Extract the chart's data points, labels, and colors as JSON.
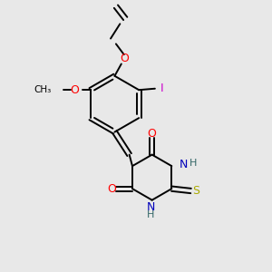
{
  "bg_color": "#e8e8e8",
  "bond_color": "#000000",
  "atom_colors": {
    "O": "#ff0000",
    "N": "#0000bb",
    "S": "#aaaa00",
    "I": "#cc00cc",
    "H": "#336666",
    "C": "#000000"
  },
  "figsize": [
    3.0,
    3.0
  ],
  "dpi": 100
}
